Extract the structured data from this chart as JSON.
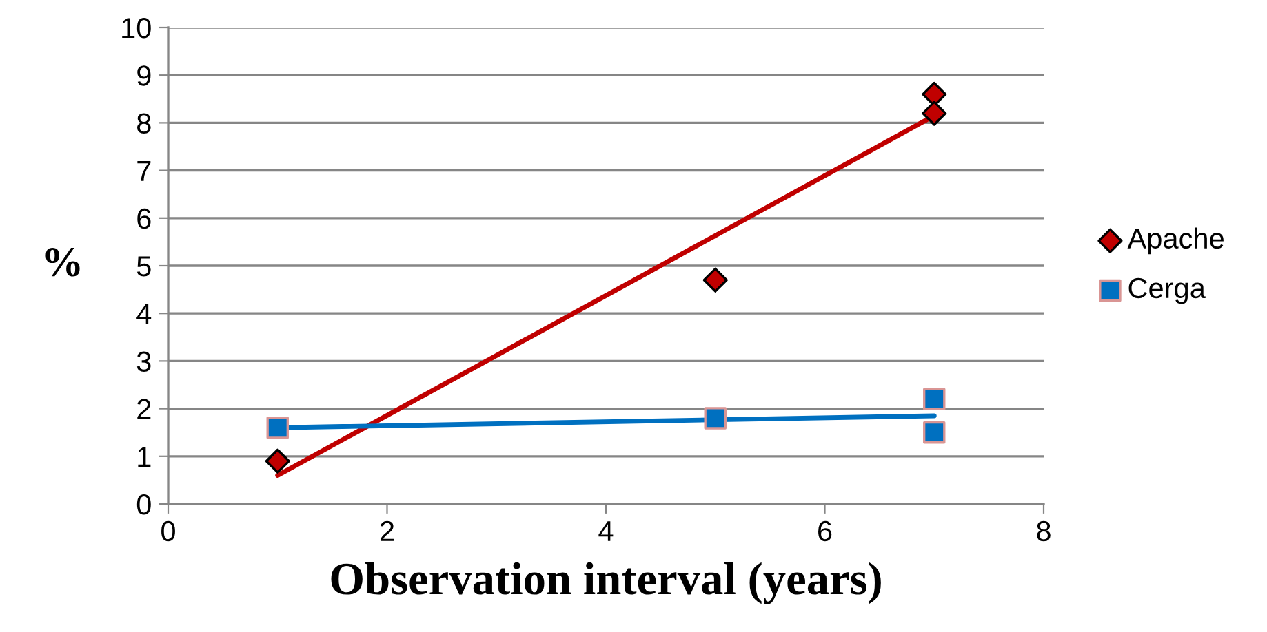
{
  "chart_data": {
    "type": "scatter",
    "xlabel": "Observation interval (years)",
    "ylabel": "%",
    "xlim": [
      0,
      8
    ],
    "xticks": [
      0,
      2,
      4,
      6,
      8
    ],
    "ylim": [
      0,
      10
    ],
    "yticks": [
      0,
      1,
      2,
      3,
      4,
      5,
      6,
      7,
      8,
      9,
      10
    ],
    "grid": "y",
    "legend": "right",
    "series": [
      {
        "name": "Apache",
        "color": "#c00000",
        "marker": "diamond",
        "x": [
          1,
          5,
          7,
          7
        ],
        "values": [
          0.9,
          4.7,
          8.6,
          8.2
        ]
      },
      {
        "name": "Cerga",
        "color": "#0070c0",
        "marker": "square",
        "x": [
          1,
          5,
          7,
          7
        ],
        "values": [
          1.6,
          1.8,
          2.2,
          1.5
        ]
      },
      {
        "type": "line",
        "color": "#c00000",
        "marker": "none",
        "x": [
          1,
          7
        ],
        "values": [
          0.6,
          8.15
        ]
      },
      {
        "type": "line",
        "color": "#0070c0",
        "marker": "none",
        "x": [
          1,
          7
        ],
        "values": [
          1.6,
          1.85
        ]
      }
    ]
  }
}
